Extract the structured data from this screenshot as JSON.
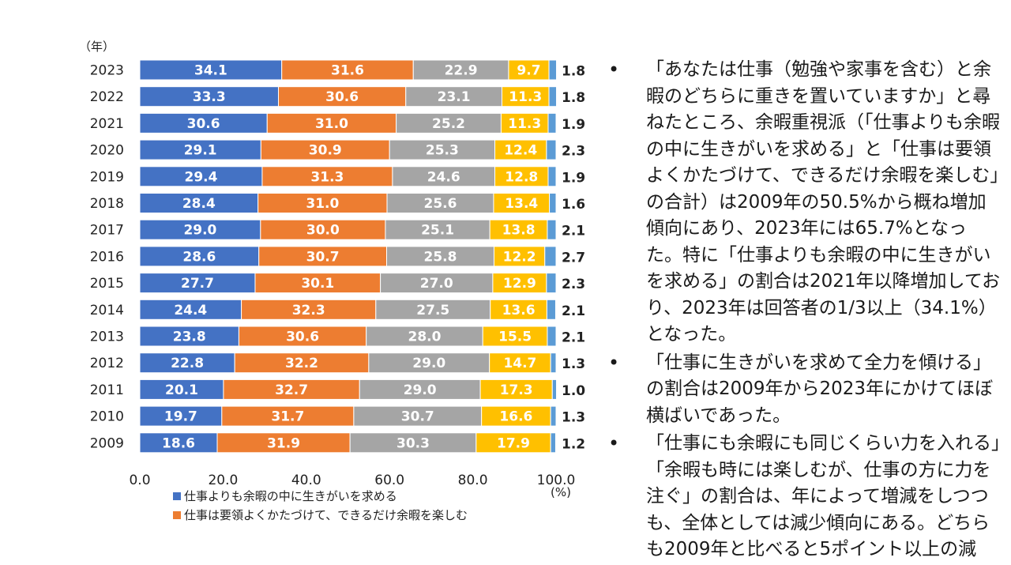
{
  "chart_data": {
    "type": "bar",
    "orientation": "horizontal",
    "stacked": true,
    "categories": [
      "2023",
      "2022",
      "2021",
      "2020",
      "2019",
      "2018",
      "2017",
      "2016",
      "2015",
      "2014",
      "2013",
      "2012",
      "2011",
      "2010",
      "2009"
    ],
    "series": [
      {
        "name": "仕事よりも余暇の中に生きがいを求める",
        "color": "#4472c4",
        "values": [
          34.1,
          33.3,
          30.6,
          29.1,
          29.4,
          28.4,
          29.0,
          28.6,
          27.7,
          24.4,
          23.8,
          22.8,
          20.1,
          19.7,
          18.6
        ]
      },
      {
        "name": "仕事は要領よくかたづけて、できるだけ余暇を楽しむ",
        "color": "#ed7d31",
        "values": [
          31.6,
          30.6,
          31.0,
          30.9,
          31.3,
          31.0,
          30.0,
          30.7,
          30.1,
          32.3,
          30.6,
          32.2,
          32.7,
          31.7,
          31.9
        ]
      },
      {
        "name": "",
        "color": "#a5a5a5",
        "values": [
          22.9,
          23.1,
          25.2,
          25.3,
          24.6,
          25.6,
          25.1,
          25.8,
          27.0,
          27.5,
          28.0,
          29.0,
          29.0,
          30.7,
          30.3
        ]
      },
      {
        "name": "",
        "color": "#ffc000",
        "values": [
          9.7,
          11.3,
          11.3,
          12.4,
          12.8,
          13.4,
          13.8,
          12.2,
          12.9,
          13.6,
          15.5,
          14.7,
          17.3,
          16.6,
          17.9
        ]
      },
      {
        "name": "",
        "color": "#5b9bd5",
        "values": [
          1.8,
          1.8,
          1.9,
          2.3,
          1.9,
          1.6,
          2.1,
          2.7,
          2.3,
          2.1,
          2.1,
          1.3,
          1.0,
          1.3,
          1.2
        ]
      }
    ],
    "value_labels": [
      [
        "34.1",
        "33.3",
        "30.6",
        "29.1",
        "29.4",
        "28.4",
        "29.0",
        "28.6",
        "27.7",
        "24.4",
        "23.8",
        "22.8",
        "20.1",
        "19.7",
        "18.6"
      ],
      [
        "31.6",
        "30.6",
        "31.0",
        "30.9",
        "31.3",
        "31.0",
        "30.0",
        "30.7",
        "30.1",
        "32.3",
        "30.6",
        "32.2",
        "32.7",
        "31.7",
        "31.9"
      ],
      [
        "22.9",
        "23.1",
        "25.2",
        "25.3",
        "24.6",
        "25.6",
        "25.1",
        "25.8",
        "27.0",
        "27.5",
        "28.0",
        "29.0",
        "29.0",
        "30.7",
        "30.3"
      ],
      [
        "9.7",
        "11.3",
        "11.3",
        "12.4",
        "12.8",
        "13.4",
        "13.8",
        "12.2",
        "12.9",
        "13.6",
        "15.5",
        "14.7",
        "17.3",
        "16.6",
        "17.9"
      ],
      [
        "1.8",
        "1.8",
        "1.9",
        "2.3",
        "1.9",
        "1.6",
        "2.1",
        "2.7",
        "2.3",
        "2.1",
        "2.1",
        "1.3",
        "1.0",
        "1.3",
        "1.2"
      ]
    ],
    "y_unit_label": "（年）",
    "x_unit_label": "(%)",
    "x_ticks": [
      0,
      20,
      40,
      60,
      80,
      100
    ],
    "x_tick_labels": [
      "0.0",
      "20.0",
      "40.0",
      "60.0",
      "80.0",
      "100.0"
    ],
    "xlim": [
      0,
      100
    ],
    "grid": false,
    "legend_position": "bottom",
    "title": ""
  },
  "bullets": [
    "「あなたは仕事（勉強や家事を含む）と余暇のどちらに重きを置いていますか」と尋ねたところ、余暇重視派（「仕事よりも余暇の中に生きがいを求める」と「仕事は要領よくかたづけて、できるだけ余暇を楽しむ」の合計）は2009年の50.5%から概ね増加傾向にあり、2023年には65.7%となった。特に「仕事よりも余暇の中に生きがいを求める」の割合は2021年以降増加しており、2023年は回答者の1/3以上（34.1%）となった。",
    "「仕事に生きがいを求めて全力を傾ける」の割合は2009年から2023年にかけてほぼ横ばいであった。",
    "「仕事にも余暇にも同じくらい力を入れる」「余暇も時には楽しむが、仕事の方に力を注ぐ」の割合は、年によって増減をしつつも、全体としては減少傾向にある。どちらも2009年と比べると5ポイント以上の減"
  ]
}
